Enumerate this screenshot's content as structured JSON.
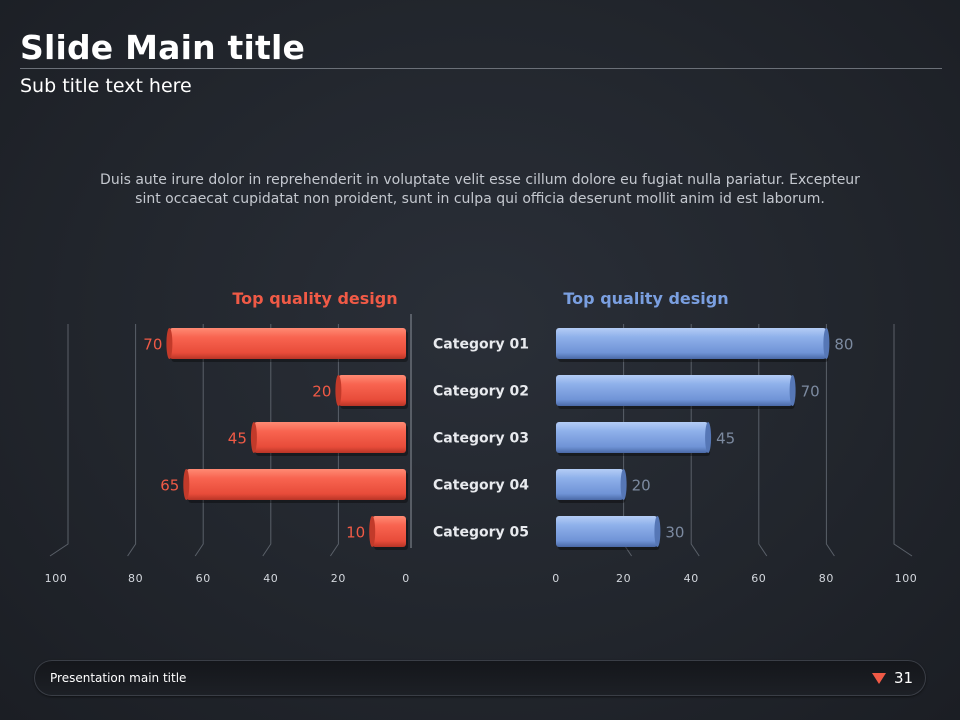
{
  "slide": {
    "title": "Slide Main title",
    "subtitle": "Sub title text here",
    "body": "Duis aute irure dolor in reprehenderit in voluptate velit esse cillum dolore eu fugiat nulla pariatur. Excepteur sint occaecat cupidatat non proident, sunt in culpa qui officia deserunt mollit anim id est laborum."
  },
  "footer": {
    "text": "Presentation main title",
    "page": "31",
    "marker_color": "#f05a46"
  },
  "chart_data": [
    {
      "type": "bar",
      "orientation": "horizontal",
      "direction": "right-to-left",
      "title": "Top quality design",
      "categories": [
        "Category 01",
        "Category 02",
        "Category 03",
        "Category 04",
        "Category 05"
      ],
      "values": [
        70,
        20,
        45,
        65,
        10
      ],
      "xlim": [
        0,
        100
      ],
      "ticks": [
        "100",
        "80",
        "60",
        "40",
        "20",
        "0"
      ],
      "color": "#f05a46",
      "grid": true
    },
    {
      "type": "bar",
      "orientation": "horizontal",
      "direction": "left-to-right",
      "title": "Top quality design",
      "categories": [
        "Category 01",
        "Category 02",
        "Category 03",
        "Category 04",
        "Category 05"
      ],
      "values": [
        80,
        70,
        45,
        20,
        30
      ],
      "xlim": [
        0,
        100
      ],
      "ticks": [
        "0",
        "20",
        "40",
        "60",
        "80",
        "100"
      ],
      "color": "#7a9fe0",
      "grid": true
    }
  ]
}
